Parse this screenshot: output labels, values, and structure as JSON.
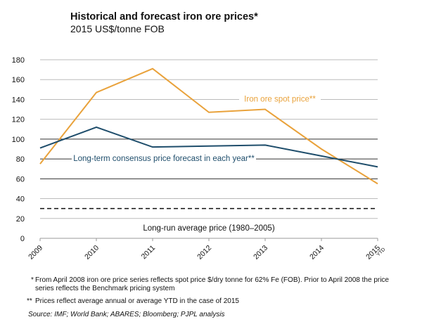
{
  "chart_data": {
    "type": "line",
    "title": "Historical and forecast iron ore prices*",
    "subtitle": "2015 US$/tonne FOB",
    "categories": [
      "2009",
      "2010",
      "2011",
      "2012",
      "2013",
      "2014",
      "2015"
    ],
    "category_sublabels": {
      "2015": "YTD"
    },
    "ylim": [
      0,
      180
    ],
    "yticks": [
      0,
      20,
      40,
      60,
      80,
      100,
      120,
      140,
      160,
      180
    ],
    "grid": true,
    "series": [
      {
        "name": "Iron ore spot price**",
        "color": "#E9A23B",
        "values": [
          75,
          147,
          171,
          127,
          130,
          90,
          55
        ]
      },
      {
        "name": "Long-term consensus price forecast in each year**",
        "color": "#1E4D6B",
        "values": [
          91,
          112,
          92,
          93,
          94,
          83,
          72
        ]
      }
    ],
    "reference_line": {
      "name": "Long-run average price (1980–2005)",
      "value": 30,
      "style": "dashed",
      "color": "#111111"
    }
  },
  "footnotes": [
    {
      "marker": "*",
      "text": "From April 2008 iron ore price series reflects spot price $/dry tonne for 62% Fe (FOB). Prior to April 2008 the price series reflects the Benchmark pricing system"
    },
    {
      "marker": "**",
      "text": "Prices reflect average annual or average YTD in the case of 2015"
    }
  ],
  "source": "Source: IMF; World Bank; ABARES; Bloomberg; PJPL analysis"
}
